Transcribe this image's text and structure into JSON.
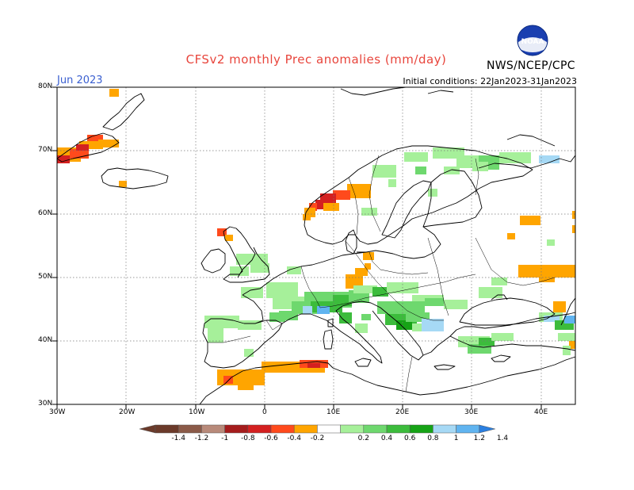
{
  "header": {
    "title": "CFSv2 monthly Prec anomalies (mm/day)",
    "month": "Jun 2023",
    "initial_conditions": "Initial conditions: 22Jan2023-31Jan2023",
    "agency": "NWS/NCEP/CPC",
    "logo_text": "NOAA"
  },
  "axes": {
    "lat_labels": [
      "80N",
      "70N",
      "60N",
      "50N",
      "40N",
      "30N"
    ],
    "lon_labels": [
      "30W",
      "20W",
      "10W",
      "0",
      "10E",
      "20E",
      "30E",
      "40E"
    ]
  },
  "colorbar": {
    "labels": [
      "-1.4",
      "-1.2",
      "-1",
      "-0.8",
      "-0.6",
      "-0.4",
      "-0.2",
      "0.2",
      "0.4",
      "0.6",
      "0.8",
      "1",
      "1.2",
      "1.4"
    ],
    "colors": [
      "#6b3a2a",
      "#8b5a48",
      "#b88a7a",
      "#a51c1c",
      "#d42020",
      "#ff4a1c",
      "#ffa500",
      "#ffffff",
      "#a6f09a",
      "#6ed86e",
      "#3cbc3c",
      "#16a316",
      "#a6d9f5",
      "#60b4f0",
      "#2a7fe0"
    ]
  },
  "map_data": {
    "projection": "cylindrical",
    "lon_range": [
      -30,
      45
    ],
    "lat_range": [
      30,
      80
    ],
    "anomaly_regions": [
      {
        "name": "Iceland",
        "sign": "negative",
        "level": "-0.4 to -0.8"
      },
      {
        "name": "Western Norway",
        "sign": "negative",
        "level": "-0.4 to -0.8"
      },
      {
        "name": "Scotland",
        "sign": "negative",
        "level": "-0.4 to -0.6"
      },
      {
        "name": "North Africa (Algeria)",
        "sign": "negative",
        "level": "-0.2 to -0.6"
      },
      {
        "name": "Western Russia",
        "sign": "negative",
        "level": "-0.2 to -0.4"
      },
      {
        "name": "Northern Scandinavia",
        "sign": "positive",
        "level": "0.2 to 0.6"
      },
      {
        "name": "Central Europe / Alps",
        "sign": "positive",
        "level": "0.2 to 1.0"
      },
      {
        "name": "Balkans",
        "sign": "positive",
        "level": "0.2 to 1.0"
      },
      {
        "name": "Iberian Peninsula (north)",
        "sign": "positive",
        "level": "0.2 to 0.6"
      },
      {
        "name": "Turkey",
        "sign": "positive",
        "level": "0.2 to 0.8"
      },
      {
        "name": "Caucasus",
        "sign": "positive",
        "level": "0.2 to 1.2"
      }
    ]
  }
}
